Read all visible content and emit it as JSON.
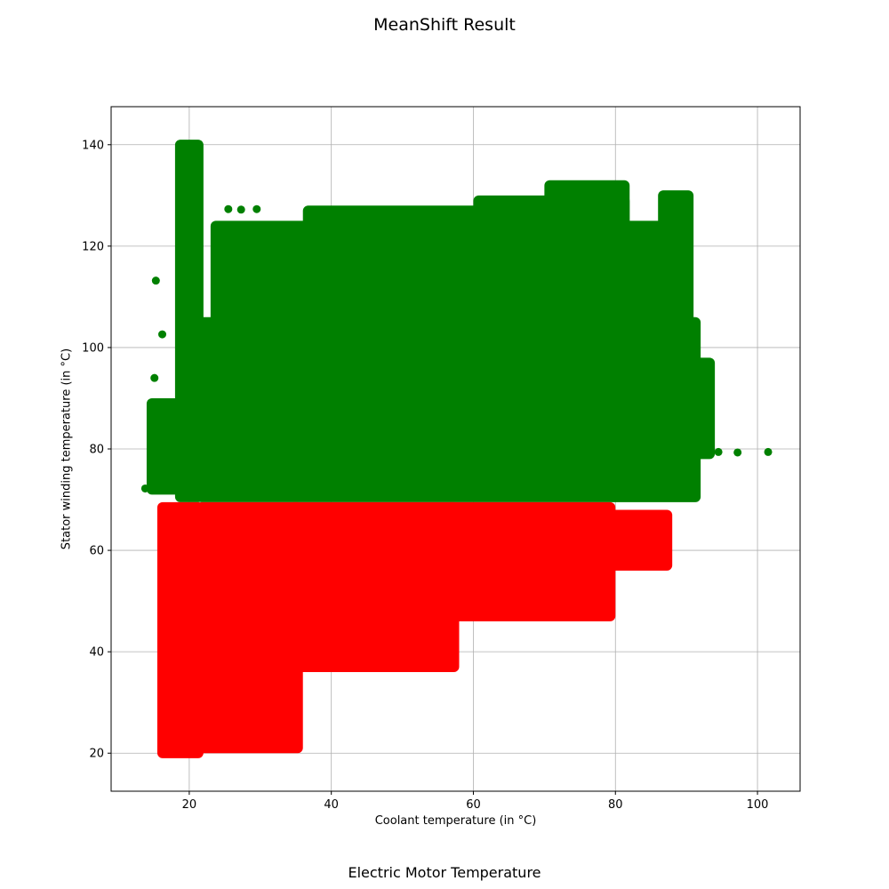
{
  "figure_title": "MeanShift Result",
  "footer_title": "Electric Motor Temperature",
  "chart_data": {
    "type": "scatter",
    "title": "MeanShift Result",
    "xlabel": "Coolant temperature (in °C)",
    "ylabel": "Stator winding temperature (in °C)",
    "xlim": [
      9,
      106
    ],
    "ylim": [
      12.5,
      147.5
    ],
    "xticks": [
      20,
      40,
      60,
      80,
      100
    ],
    "yticks": [
      20,
      40,
      60,
      80,
      100,
      120,
      140
    ],
    "grid": true,
    "clusters_split_at_y": 69.5,
    "series": [
      {
        "color": "#008000",
        "regions": [
          {
            "x": [
              21,
              92
            ],
            "y": [
              69.5,
              106
            ]
          },
          {
            "x": [
              23,
              90
            ],
            "y": [
              100,
              125
            ]
          },
          {
            "x": [
              18,
              22
            ],
            "y": [
              69.5,
              141
            ]
          },
          {
            "x": [
              36,
              62
            ],
            "y": [
              106,
              128
            ]
          },
          {
            "x": [
              70,
              82
            ],
            "y": [
              108,
              133
            ]
          },
          {
            "x": [
              86,
              91
            ],
            "y": [
              90,
              131
            ]
          },
          {
            "x": [
              88,
              94
            ],
            "y": [
              78,
              98
            ]
          },
          {
            "x": [
              14,
              20
            ],
            "y": [
              71,
              90
            ]
          },
          {
            "x": [
              60,
              82
            ],
            "y": [
              120,
              130
            ]
          }
        ],
        "outliers": [
          [
            13.8,
            72.2
          ],
          [
            15.2,
            72.2
          ],
          [
            15.1,
            94
          ],
          [
            15.3,
            113.2
          ],
          [
            16.2,
            102.6
          ],
          [
            94.5,
            79.4
          ],
          [
            97.2,
            79.3
          ],
          [
            101.5,
            79.4
          ],
          [
            25.5,
            127.3
          ],
          [
            27.3,
            127.2
          ],
          [
            29.5,
            127.3
          ],
          [
            67.3,
            124.5
          ]
        ]
      },
      {
        "color": "#ff0000",
        "regions": [
          {
            "x": [
              15.5,
              22
            ],
            "y": [
              19,
              69.5
            ]
          },
          {
            "x": [
              21,
              36
            ],
            "y": [
              20,
              69.5
            ]
          },
          {
            "x": [
              34,
              58
            ],
            "y": [
              36,
              69.5
            ]
          },
          {
            "x": [
              56,
              80
            ],
            "y": [
              46,
              69.5
            ]
          },
          {
            "x": [
              78,
              88
            ],
            "y": [
              56,
              68
            ]
          }
        ],
        "outliers": [
          [
            64.7,
            48.2
          ],
          [
            58.3,
            49.1
          ]
        ]
      }
    ]
  }
}
